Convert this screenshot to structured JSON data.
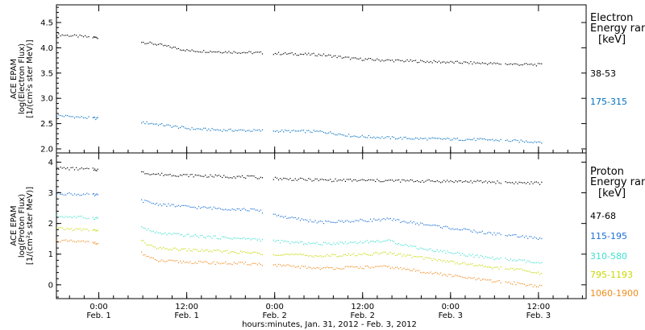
{
  "chart_data": [
    {
      "type": "scatter",
      "ylabel_lines": [
        "ACE EPAM",
        "log(Electron Flux)",
        "[1/(cm²s ster MeV)]"
      ],
      "ylim": [
        1.92,
        4.85
      ],
      "yticks": [
        2.0,
        2.5,
        3.0,
        3.5,
        4.0,
        4.5
      ],
      "ytick_labels": [
        "2.0",
        "2.5",
        "3.0",
        "3.5",
        "4.0",
        "4.5"
      ],
      "side_title_lines": [
        "Electron",
        "Energy ran"
      ],
      "unit_label": "[keV]",
      "series": [
        {
          "name": "38-53",
          "color": "#000000",
          "y": [
            4.27,
            4.22,
            4.18,
            4.08,
            3.95,
            3.93,
            3.91,
            3.89,
            3.87,
            3.79,
            3.76,
            3.74,
            3.72,
            3.7,
            3.68,
            3.67,
            3.66
          ]
        },
        {
          "name": "175-315",
          "color": "#0070c0",
          "y": [
            2.67,
            2.62,
            2.58,
            2.5,
            2.41,
            2.38,
            2.37,
            2.36,
            2.35,
            2.26,
            2.23,
            2.21,
            2.2,
            2.19,
            2.16,
            2.14,
            2.12
          ]
        }
      ]
    },
    {
      "type": "scatter",
      "ylabel_lines": [
        "ACE EPAM",
        "log(Proton Flux)",
        "[1/(cm²s ster MeV)]"
      ],
      "ylim": [
        -0.45,
        4.3
      ],
      "yticks": [
        0,
        1,
        2,
        3,
        4
      ],
      "ytick_labels": [
        "0",
        "1",
        "2",
        "3",
        "4"
      ],
      "side_title_lines": [
        "Proton",
        "Energy ran"
      ],
      "unit_label": "[keV]",
      "series": [
        {
          "name": "47-68",
          "color": "#000000",
          "y": [
            3.82,
            3.78,
            3.75,
            3.62,
            3.58,
            3.55,
            3.52,
            3.46,
            3.43,
            3.42,
            3.41,
            3.4,
            3.39,
            3.37,
            3.34,
            3.32,
            3.31
          ]
        },
        {
          "name": "115-195",
          "color": "#1a6fd6",
          "y": [
            3.0,
            2.95,
            2.9,
            2.65,
            2.55,
            2.5,
            2.45,
            2.2,
            2.05,
            2.1,
            2.15,
            2.0,
            1.85,
            1.7,
            1.6,
            1.45,
            1.4
          ]
        },
        {
          "name": "310-580",
          "color": "#40e0d0",
          "y": [
            2.25,
            2.2,
            2.15,
            1.7,
            1.62,
            1.55,
            1.5,
            1.4,
            1.35,
            1.4,
            1.45,
            1.2,
            1.05,
            0.9,
            0.8,
            0.65,
            0.55
          ]
        },
        {
          "name": "795-1193",
          "color": "#c8d800",
          "y": [
            1.85,
            1.8,
            1.75,
            1.2,
            1.15,
            1.1,
            1.05,
            1.0,
            0.95,
            1.0,
            1.05,
            0.9,
            0.75,
            0.6,
            0.5,
            0.3,
            0.2
          ]
        },
        {
          "name": "1060-1900",
          "color": "#f08c1e",
          "y": [
            1.45,
            1.4,
            1.35,
            0.8,
            0.75,
            0.72,
            0.7,
            0.62,
            0.55,
            0.58,
            0.6,
            0.45,
            0.3,
            0.15,
            0.05,
            -0.1,
            -0.2
          ]
        }
      ]
    }
  ],
  "xaxis": {
    "label": "hours:minutes, Jan. 31, 2012 - Feb.  3, 2012",
    "ticks": [
      {
        "time": "0:00",
        "date": "Feb. 1"
      },
      {
        "time": "12:00",
        "date": "Feb. 1"
      },
      {
        "time": "0:00",
        "date": "Feb. 2"
      },
      {
        "time": "12:00",
        "date": "Feb. 2"
      },
      {
        "time": "0:00",
        "date": "Feb. 3"
      },
      {
        "time": "12:00",
        "date": "Feb. 3"
      }
    ]
  }
}
